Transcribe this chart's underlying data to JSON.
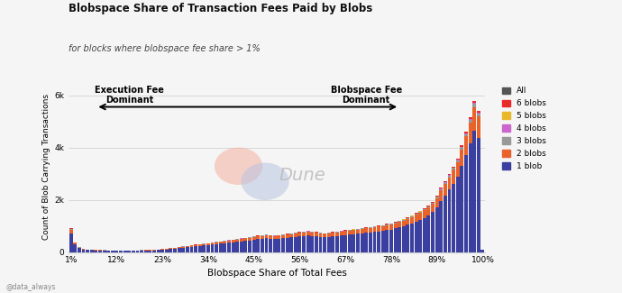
{
  "title": "Blobspace Share of Transaction Fees Paid by Blobs",
  "subtitle": "for blocks where blobspace fee share > 1%",
  "xlabel": "Blobspace Share of Total Fees",
  "ylabel": "Count of Blob Carrying Transactions",
  "watermark": "Dune",
  "credit": "@data_always",
  "background_color": "#f5f5f5",
  "plot_bg_color": "#f5f5f5",
  "colors": {
    "1 blob": "#3b3fa0",
    "2 blobs": "#e8622a",
    "3 blobs": "#999999",
    "4 blobs": "#cc66cc",
    "5 blobs": "#e8b82a",
    "6 blobs": "#e82a2a",
    "All": "#555555"
  },
  "legend_order": [
    "All",
    "6 blobs",
    "5 blobs",
    "4 blobs",
    "3 blobs",
    "2 blobs",
    "1 blob"
  ],
  "x_tick_labels": [
    "1%",
    "12%",
    "23%",
    "34%",
    "45%",
    "56%",
    "67%",
    "78%",
    "89%",
    "100%"
  ],
  "ylim": [
    0,
    6500
  ],
  "ytick_labels": [
    "0",
    "2k",
    "4k",
    "6k"
  ],
  "ytick_values": [
    0,
    2000,
    4000,
    6000
  ],
  "arrow_left_text": "Execution Fee\nDominant",
  "arrow_right_text": "Blobspace Fee\nDominant",
  "n_bins": 100,
  "bar_data": {
    "blob1": [
      720,
      290,
      140,
      100,
      80,
      70,
      65,
      60,
      55,
      52,
      48,
      45,
      50,
      48,
      45,
      48,
      52,
      55,
      58,
      62,
      68,
      75,
      85,
      100,
      115,
      130,
      148,
      165,
      182,
      200,
      215,
      232,
      250,
      265,
      282,
      300,
      318,
      335,
      355,
      372,
      392,
      410,
      430,
      448,
      468,
      488,
      505,
      525,
      510,
      495,
      510,
      528,
      545,
      562,
      580,
      598,
      615,
      632,
      615,
      598,
      582,
      565,
      582,
      598,
      615,
      632,
      648,
      665,
      682,
      700,
      718,
      735,
      752,
      770,
      788,
      808,
      835,
      862,
      900,
      940,
      985,
      1040,
      1100,
      1170,
      1240,
      1310,
      1400,
      1520,
      1700,
      1950,
      2150,
      2380,
      2620,
      2870,
      3280,
      3700,
      4150,
      4650,
      4350,
      75
    ],
    "blob2": [
      130,
      62,
      28,
      22,
      17,
      15,
      14,
      13,
      12,
      11,
      10,
      10,
      10,
      10,
      9,
      10,
      11,
      12,
      13,
      14,
      15,
      17,
      19,
      23,
      26,
      30,
      34,
      38,
      42,
      46,
      50,
      54,
      58,
      62,
      66,
      70,
      74,
      78,
      82,
      86,
      90,
      94,
      98,
      102,
      106,
      110,
      114,
      118,
      114,
      110,
      114,
      118,
      122,
      126,
      130,
      134,
      138,
      142,
      138,
      134,
      130,
      126,
      130,
      134,
      138,
      142,
      146,
      150,
      154,
      158,
      162,
      166,
      170,
      174,
      178,
      182,
      188,
      194,
      202,
      210,
      218,
      228,
      238,
      252,
      266,
      280,
      298,
      318,
      360,
      398,
      438,
      478,
      518,
      558,
      638,
      718,
      798,
      898,
      838,
      14
    ],
    "blob3": [
      22,
      11,
      5,
      4,
      3,
      3,
      2,
      2,
      2,
      2,
      2,
      2,
      2,
      2,
      2,
      2,
      2,
      2,
      2,
      2,
      3,
      3,
      3,
      4,
      4,
      5,
      5,
      6,
      6,
      7,
      7,
      8,
      8,
      9,
      9,
      10,
      10,
      11,
      11,
      12,
      12,
      13,
      13,
      14,
      14,
      15,
      15,
      16,
      15,
      15,
      15,
      16,
      16,
      17,
      17,
      18,
      18,
      19,
      18,
      18,
      17,
      17,
      18,
      18,
      19,
      19,
      20,
      20,
      21,
      21,
      22,
      22,
      23,
      23,
      24,
      24,
      25,
      26,
      27,
      28,
      30,
      31,
      33,
      35,
      37,
      39,
      41,
      44,
      49,
      55,
      61,
      66,
      71,
      77,
      88,
      99,
      110,
      124,
      116,
      2
    ],
    "blob4": [
      6,
      3,
      1,
      1,
      1,
      1,
      0,
      0,
      0,
      0,
      0,
      0,
      0,
      0,
      0,
      0,
      0,
      0,
      0,
      0,
      0,
      0,
      0,
      1,
      1,
      1,
      1,
      1,
      1,
      1,
      1,
      2,
      2,
      2,
      2,
      2,
      2,
      2,
      2,
      3,
      3,
      3,
      3,
      3,
      3,
      3,
      3,
      4,
      3,
      3,
      3,
      4,
      4,
      4,
      4,
      4,
      4,
      4,
      4,
      4,
      4,
      4,
      4,
      4,
      4,
      4,
      5,
      5,
      5,
      5,
      5,
      5,
      5,
      5,
      5,
      5,
      6,
      6,
      6,
      6,
      7,
      7,
      7,
      8,
      8,
      9,
      9,
      10,
      11,
      12,
      14,
      15,
      16,
      17,
      19,
      22,
      24,
      27,
      25,
      0
    ],
    "blob5": [
      4,
      1,
      0,
      0,
      0,
      0,
      0,
      0,
      0,
      0,
      0,
      0,
      0,
      0,
      0,
      0,
      0,
      0,
      0,
      0,
      0,
      0,
      0,
      0,
      0,
      0,
      0,
      0,
      0,
      0,
      0,
      1,
      1,
      1,
      1,
      1,
      1,
      1,
      1,
      1,
      1,
      1,
      1,
      1,
      1,
      1,
      1,
      1,
      1,
      1,
      1,
      1,
      1,
      1,
      1,
      1,
      1,
      2,
      1,
      1,
      1,
      1,
      1,
      1,
      1,
      1,
      2,
      2,
      2,
      2,
      2,
      2,
      2,
      2,
      2,
      2,
      2,
      2,
      2,
      2,
      3,
      3,
      3,
      3,
      3,
      3,
      4,
      4,
      5,
      5,
      6,
      7,
      7,
      8,
      9,
      10,
      11,
      12,
      12,
      0
    ],
    "blob6": [
      18,
      9,
      4,
      3,
      2,
      2,
      2,
      2,
      1,
      1,
      1,
      1,
      1,
      1,
      1,
      1,
      1,
      1,
      1,
      1,
      2,
      2,
      2,
      2,
      2,
      2,
      2,
      3,
      3,
      3,
      3,
      4,
      4,
      4,
      4,
      5,
      5,
      5,
      5,
      6,
      6,
      6,
      6,
      7,
      7,
      7,
      7,
      8,
      7,
      7,
      7,
      8,
      8,
      8,
      8,
      9,
      9,
      9,
      9,
      9,
      8,
      8,
      9,
      9,
      9,
      9,
      10,
      10,
      10,
      10,
      11,
      11,
      11,
      11,
      12,
      12,
      13,
      13,
      14,
      15,
      16,
      17,
      18,
      19,
      20,
      21,
      23,
      25,
      28,
      32,
      35,
      38,
      41,
      45,
      51,
      57,
      64,
      72,
      67,
      1
    ]
  }
}
